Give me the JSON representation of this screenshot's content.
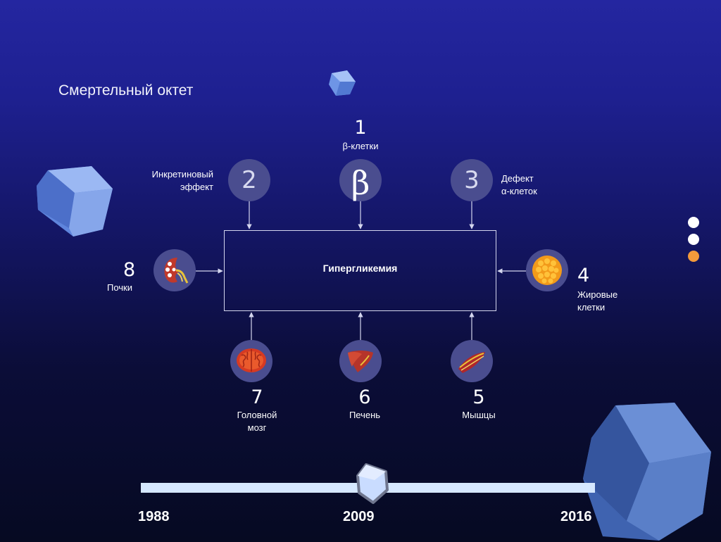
{
  "title": "Смертельный октет",
  "diagram": {
    "center": "Гипергликемия",
    "nodes": [
      {
        "id": "beta-cells",
        "number": "1",
        "label": "β-клетки",
        "icon": "beta-symbol-icon",
        "glyph": "β"
      },
      {
        "id": "incretin",
        "number": "2",
        "label_lines": [
          "Инкретиновый",
          "эффект"
        ],
        "icon": "number-2-circle-icon"
      },
      {
        "id": "alpha-cells",
        "number": "3",
        "label_lines": [
          "Дефект",
          "α-клеток"
        ],
        "icon": "number-3-circle-icon"
      },
      {
        "id": "fat-cells",
        "number": "4",
        "label_lines": [
          "Жировые",
          "клетки"
        ],
        "icon": "fat-cell-icon"
      },
      {
        "id": "muscles",
        "number": "5",
        "label": "Мышцы",
        "icon": "muscle-icon"
      },
      {
        "id": "liver",
        "number": "6",
        "label": "Печень",
        "icon": "liver-icon"
      },
      {
        "id": "brain",
        "number": "7",
        "label_lines": [
          "Головной",
          "мозг"
        ],
        "icon": "brain-icon"
      },
      {
        "id": "kidneys",
        "number": "8",
        "label": "Почки",
        "icon": "kidney-icon"
      }
    ],
    "flow": "all eight factors point into Гипергликемия"
  },
  "pagination": {
    "total": 3,
    "active": 3,
    "colors": {
      "inactive": "#ffffff",
      "active": "#f39a3b"
    }
  },
  "timeline": {
    "years": [
      "1988",
      "2009",
      "2016"
    ],
    "current": "2009"
  },
  "colors": {
    "bg_top": "#2426a0",
    "bg_bottom": "#060a22",
    "node": "#4a4d8f",
    "track": "#d6e8ff",
    "accent": "#f39a3b"
  }
}
